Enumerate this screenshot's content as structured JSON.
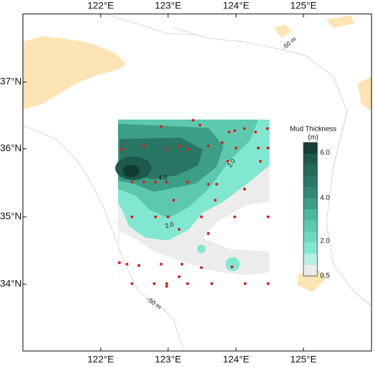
{
  "map": {
    "lon_labels_top": [
      "122°E",
      "123°E",
      "124°E",
      "125°E"
    ],
    "lon_labels_bottom": [
      "122°E",
      "123°E",
      "124°E",
      "125°E"
    ],
    "lat_labels": [
      "37°N",
      "36°N",
      "35°N",
      "34°N"
    ],
    "contour_labels": [
      "4.0",
      "2.0",
      "2.0"
    ],
    "depth_labels": [
      "-50 m",
      "-50 m"
    ],
    "legend": {
      "title": "Mud Thickness",
      "unit": "(m)",
      "ticks": [
        "6.0",
        "4.0",
        "2.0",
        "0.5"
      ]
    }
  }
}
